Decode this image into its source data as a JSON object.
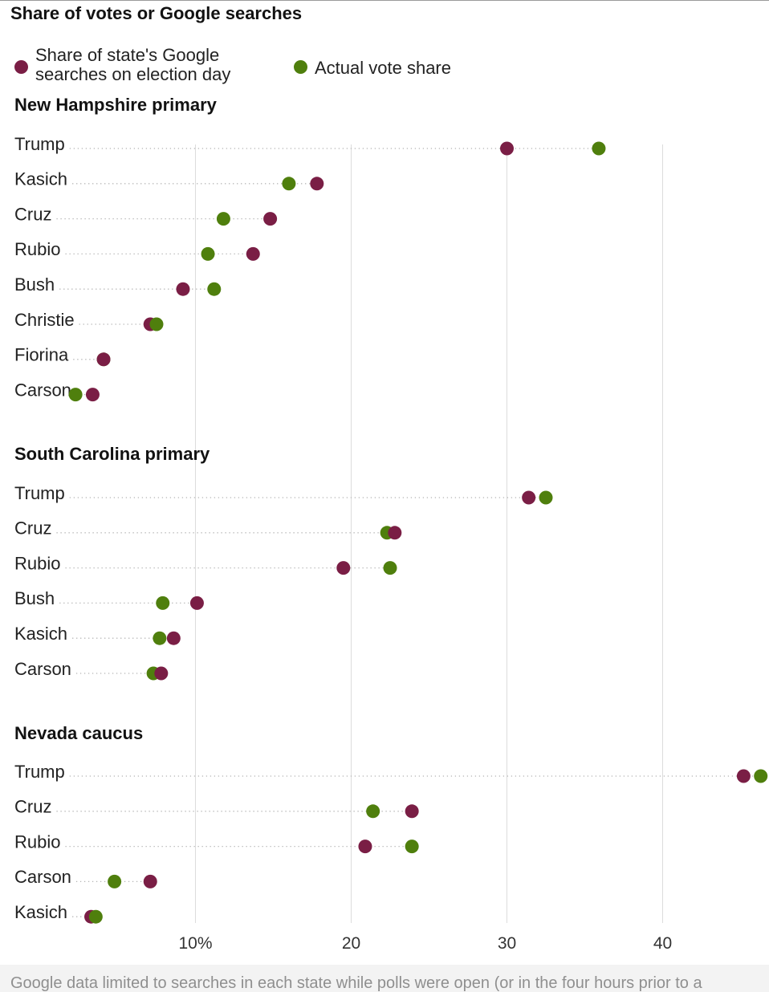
{
  "chart_data": {
    "type": "dot",
    "title": "Share of votes or Google searches",
    "xlim": [
      0,
      46.5
    ],
    "ticks": [
      10,
      20,
      30,
      40
    ],
    "tick_labels": [
      "10%",
      "20",
      "30",
      "40"
    ],
    "legend": [
      {
        "key": "google",
        "lines": [
          "Share of state's Google",
          "searches on election day"
        ],
        "color": "#7a1e45"
      },
      {
        "key": "vote",
        "lines": [
          "Actual vote share"
        ],
        "color": "#4f7f0d"
      }
    ],
    "panels": [
      {
        "title": "New Hampshire primary",
        "rows": [
          {
            "candidate": "Trump",
            "google": 30.0,
            "vote": 35.9
          },
          {
            "candidate": "Kasich",
            "google": 17.8,
            "vote": 16.0
          },
          {
            "candidate": "Cruz",
            "google": 14.8,
            "vote": 11.8
          },
          {
            "candidate": "Rubio",
            "google": 13.7,
            "vote": 10.8
          },
          {
            "candidate": "Bush",
            "google": 9.2,
            "vote": 11.2
          },
          {
            "candidate": "Christie",
            "google": 7.1,
            "vote": 7.5
          },
          {
            "candidate": "Fiorina",
            "google": 4.1,
            "vote": 4.1
          },
          {
            "candidate": "Carson",
            "google": 3.4,
            "vote": 2.3
          }
        ]
      },
      {
        "title": "South Carolina primary",
        "rows": [
          {
            "candidate": "Trump",
            "google": 31.4,
            "vote": 32.5
          },
          {
            "candidate": "Cruz",
            "google": 22.8,
            "vote": 22.3
          },
          {
            "candidate": "Rubio",
            "google": 19.5,
            "vote": 22.5
          },
          {
            "candidate": "Bush",
            "google": 10.1,
            "vote": 7.9
          },
          {
            "candidate": "Kasich",
            "google": 8.6,
            "vote": 7.7
          },
          {
            "candidate": "Carson",
            "google": 7.8,
            "vote": 7.3
          }
        ]
      },
      {
        "title": "Nevada caucus",
        "rows": [
          {
            "candidate": "Trump",
            "google": 45.2,
            "vote": 46.3
          },
          {
            "candidate": "Cruz",
            "google": 23.9,
            "vote": 21.4
          },
          {
            "candidate": "Rubio",
            "google": 20.9,
            "vote": 23.9
          },
          {
            "candidate": "Carson",
            "google": 7.1,
            "vote": 4.8
          },
          {
            "candidate": "Kasich",
            "google": 3.3,
            "vote": 3.6
          }
        ]
      }
    ]
  },
  "footnote": "Google data limited to searches in each state while polls were open (or in the four hours prior to a"
}
